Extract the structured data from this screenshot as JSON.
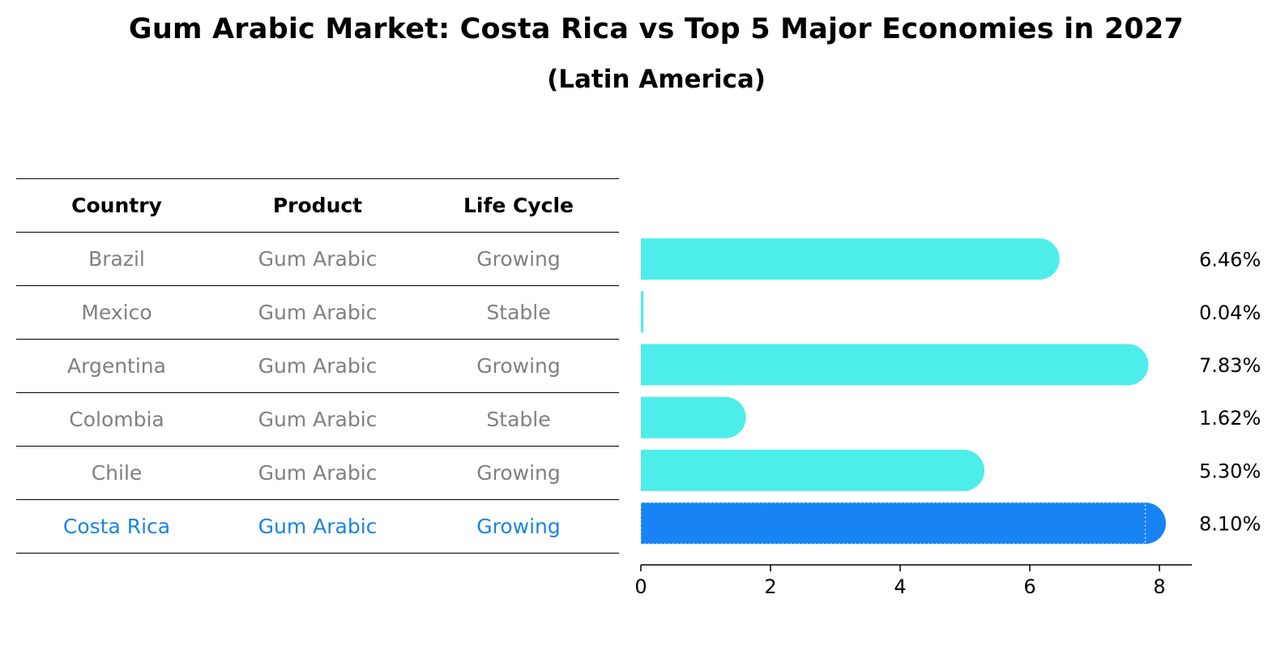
{
  "chart_data": {
    "type": "bar",
    "orientation": "horizontal",
    "title": "Gum Arabic Market: Costa Rica vs Top 5 Major Economies in 2027",
    "subtitle": "(Latin America)",
    "categories": [
      "Brazil",
      "Mexico",
      "Argentina",
      "Colombia",
      "Chile",
      "Costa Rica"
    ],
    "values": [
      6.46,
      0.04,
      7.83,
      1.62,
      5.3,
      8.1
    ],
    "value_labels": [
      "6.46%",
      "0.04%",
      "7.83%",
      "1.62%",
      "5.30%",
      "8.10%"
    ],
    "highlight": "Costa Rica",
    "xlim": [
      0,
      8.5
    ],
    "xticks": [
      0,
      2,
      4,
      6,
      8
    ],
    "xtick_labels": [
      "0",
      "2",
      "4",
      "6",
      "8"
    ],
    "xlabel": "",
    "ylabel": "",
    "colors": {
      "bar": "#4dede9",
      "highlight": "#1883f4",
      "highlight_text": "#1a84e6",
      "muted_text": "#808080"
    }
  },
  "table": {
    "headers": [
      "Country",
      "Product",
      "Life Cycle"
    ],
    "rows": [
      [
        "Brazil",
        "Gum Arabic",
        "Growing"
      ],
      [
        "Mexico",
        "Gum Arabic",
        "Stable"
      ],
      [
        "Argentina",
        "Gum Arabic",
        "Growing"
      ],
      [
        "Colombia",
        "Gum Arabic",
        "Stable"
      ],
      [
        "Chile",
        "Gum Arabic",
        "Growing"
      ],
      [
        "Costa Rica",
        "Gum Arabic",
        "Growing"
      ]
    ]
  }
}
